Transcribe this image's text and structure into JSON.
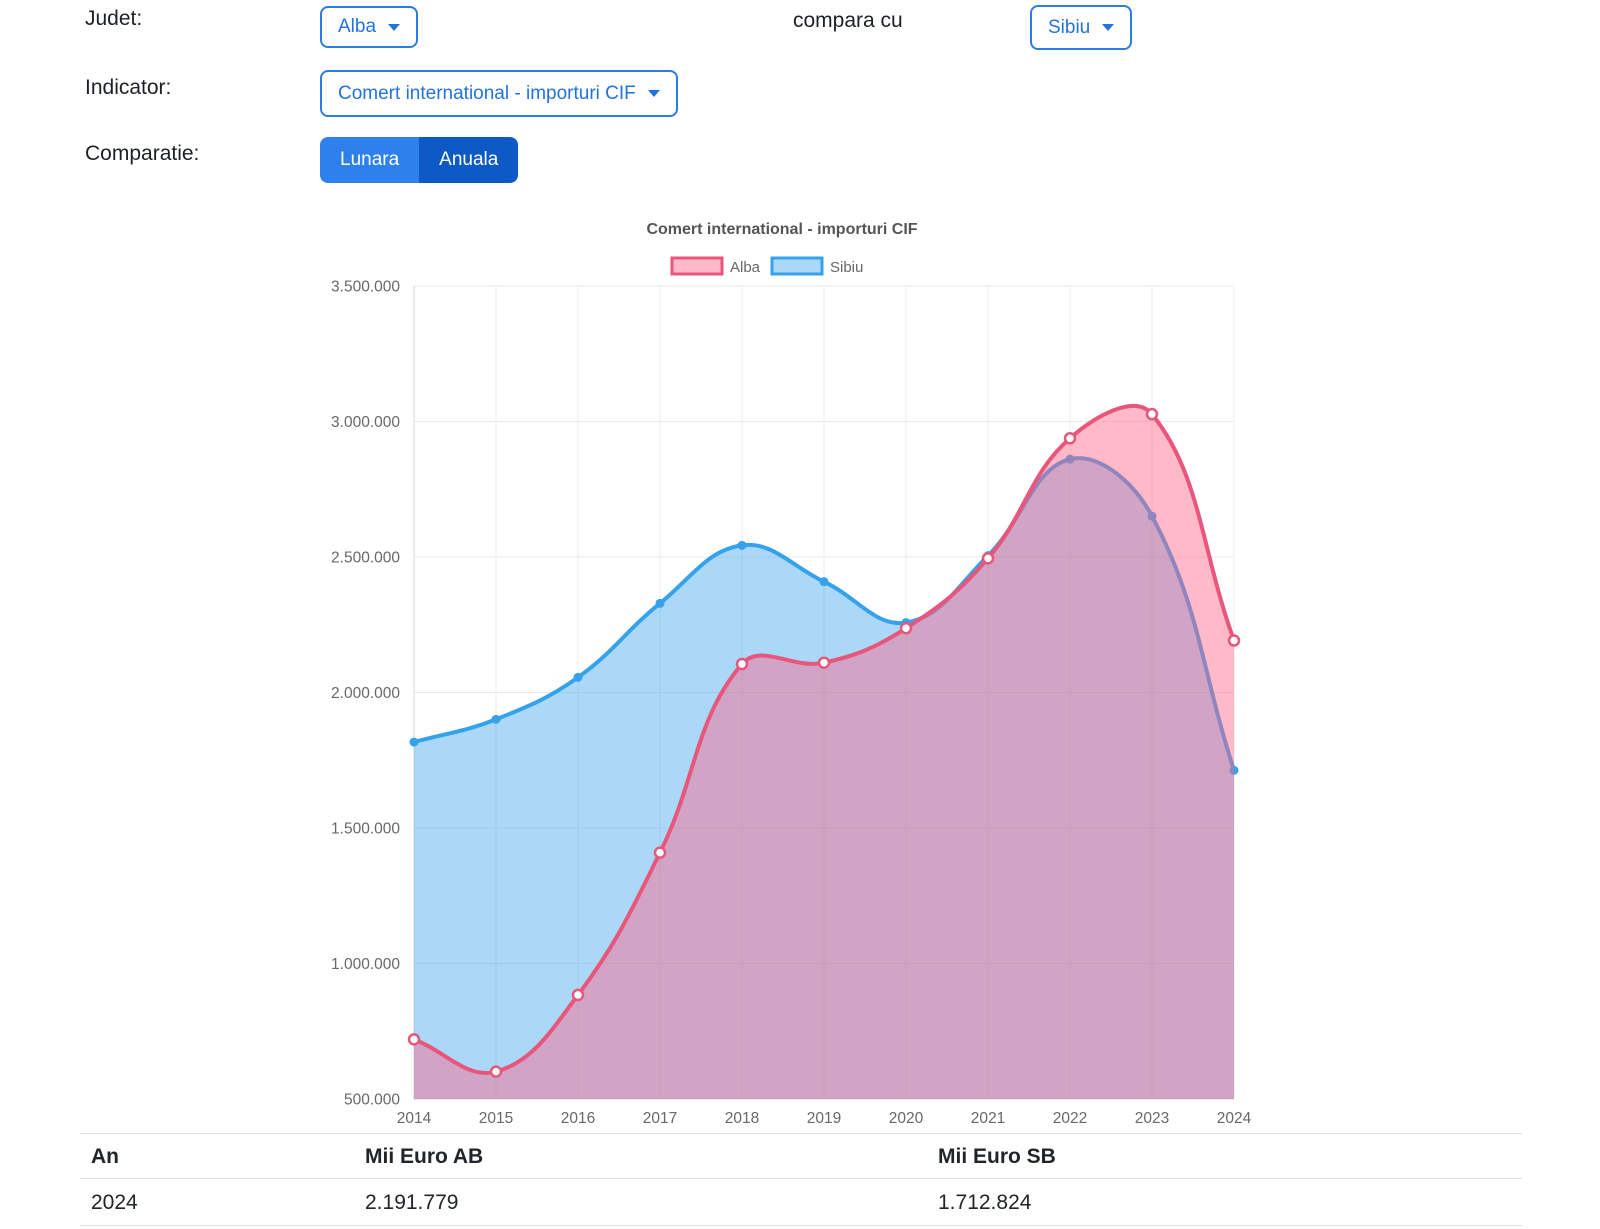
{
  "filters": {
    "judet": {
      "label": "Judet:",
      "value": "Alba"
    },
    "compara": {
      "label": "compara cu",
      "value": "Sibiu"
    },
    "indicator": {
      "label": "Indicator:",
      "value": "Comert international - importuri CIF"
    },
    "comparatie": {
      "label": "Comparatie:",
      "options": [
        {
          "label": "Lunara",
          "active": false
        },
        {
          "label": "Anuala",
          "active": true
        }
      ]
    }
  },
  "colors": {
    "accent_blue": "#2272e0",
    "toggle_inactive_bg": "#2e80ec",
    "toggle_active_bg": "#0d5ac6",
    "alba_line": "#e8567c",
    "alba_fill": "rgba(255,99,132,0.45)",
    "sibiu_line": "#36a2eb",
    "sibiu_fill": "rgba(54,162,235,0.42)",
    "grid": "#e9e9e9",
    "axis_text": "#686868"
  },
  "chart_data": {
    "type": "area",
    "title": "Comert international - importuri CIF",
    "categories": [
      "2014",
      "2015",
      "2016",
      "2017",
      "2018",
      "2019",
      "2020",
      "2021",
      "2022",
      "2023",
      "2024"
    ],
    "series": [
      {
        "name": "Alba",
        "line_color": "#e8567c",
        "fill_color": "rgba(255,99,132,0.45)",
        "marker": "ring",
        "values": [
          720000,
          601000,
          884000,
          1409000,
          2105000,
          2110000,
          2237000,
          2495000,
          2938000,
          3027000,
          2191779
        ]
      },
      {
        "name": "Sibiu",
        "line_color": "#36a2eb",
        "fill_color": "rgba(54,162,235,0.42)",
        "marker": "dot",
        "values": [
          1817000,
          1901000,
          2056000,
          2329000,
          2543000,
          2409000,
          2258000,
          2505000,
          2861000,
          2651000,
          1712824
        ]
      }
    ],
    "ylim": [
      500000,
      3500000
    ],
    "ytick_step": 500000,
    "grid": true,
    "legend_position": "top",
    "number_format": "dot-thousands"
  },
  "table": {
    "headers": [
      "An",
      "Mii Euro AB",
      "Mii Euro SB"
    ],
    "rows": [
      [
        "2024",
        "2.191.779",
        "1.712.824"
      ]
    ]
  }
}
